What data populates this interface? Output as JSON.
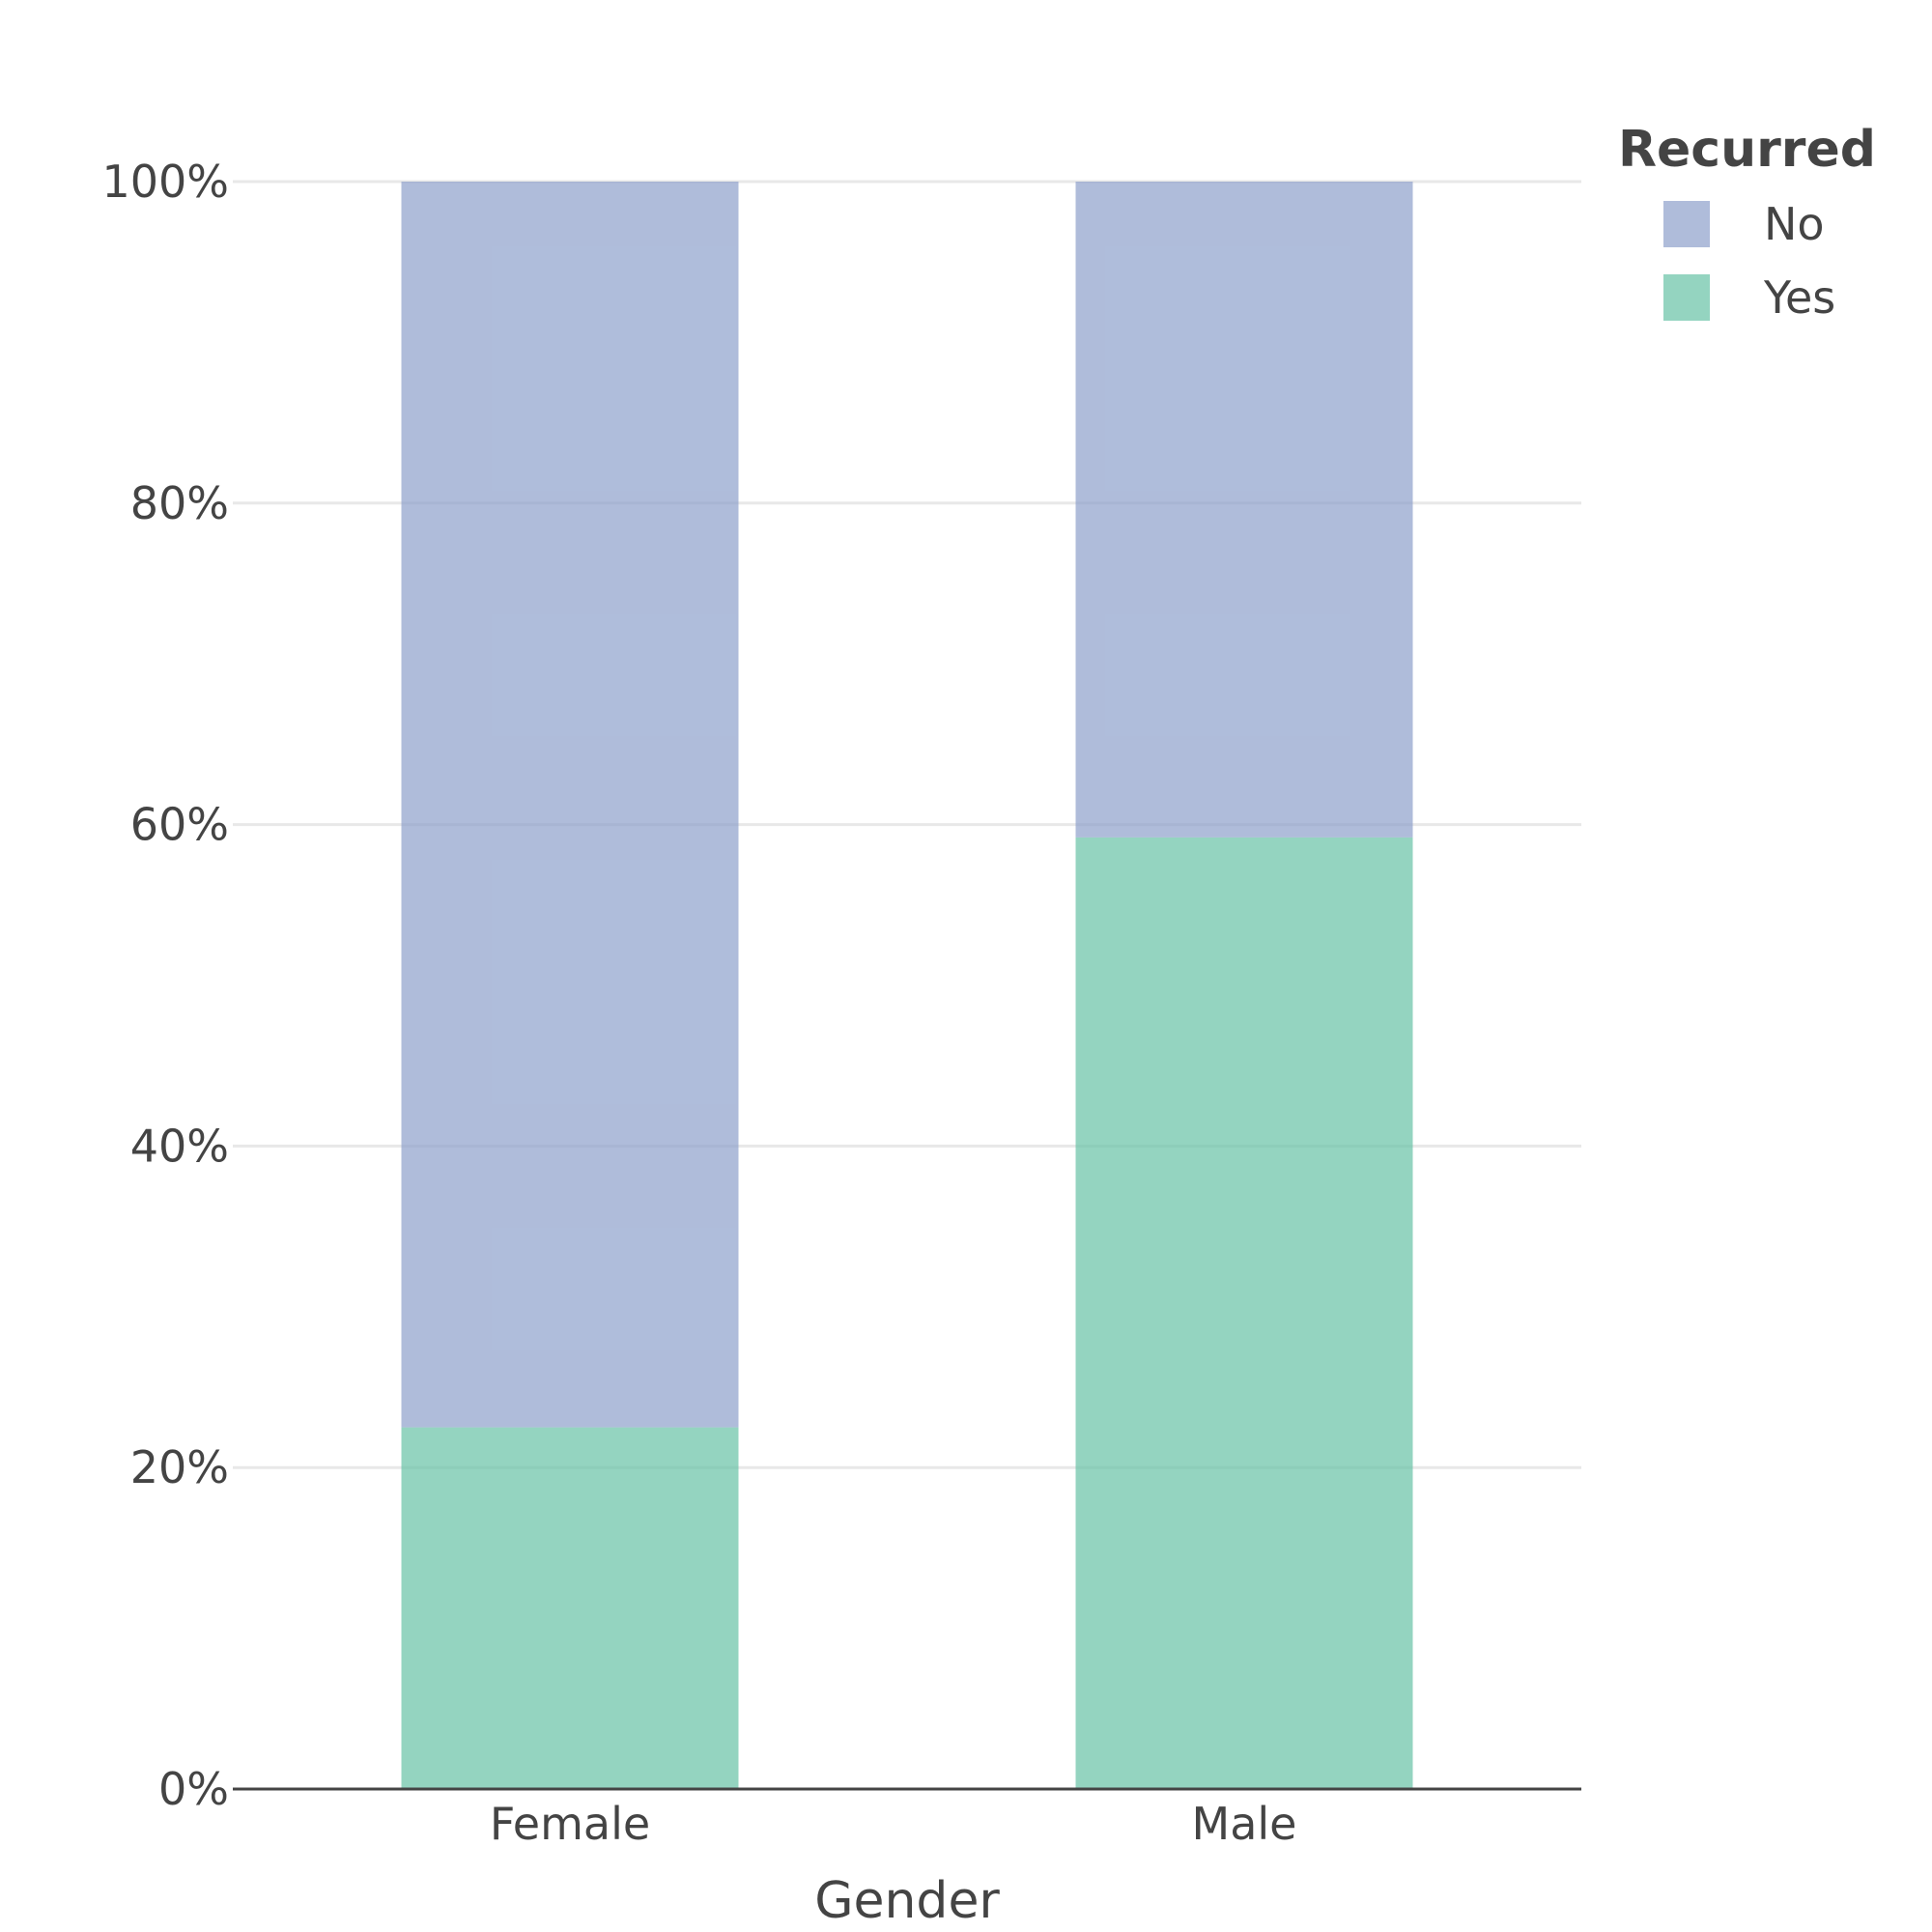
{
  "chart_data": {
    "type": "bar",
    "stacked": true,
    "categories": [
      "Female",
      "Male"
    ],
    "series": [
      {
        "name": "Yes",
        "values": [
          22.5,
          59.2
        ],
        "color": "#66c2a5"
      },
      {
        "name": "No",
        "values": [
          77.5,
          40.8
        ],
        "color": "#8da0cb"
      }
    ],
    "xlabel": "Gender",
    "ylabel": "",
    "ylim": [
      0,
      100
    ],
    "yticks": [
      0,
      20,
      40,
      60,
      80,
      100
    ],
    "ytick_labels": [
      "0%",
      "20%",
      "40%",
      "60%",
      "80%",
      "100%"
    ],
    "legend_title": "Recurred",
    "legend_entries": [
      {
        "name": "No",
        "color": "#8da0cb"
      },
      {
        "name": "Yes",
        "color": "#66c2a5"
      }
    ],
    "legend_position": "top-right",
    "grid": true
  }
}
